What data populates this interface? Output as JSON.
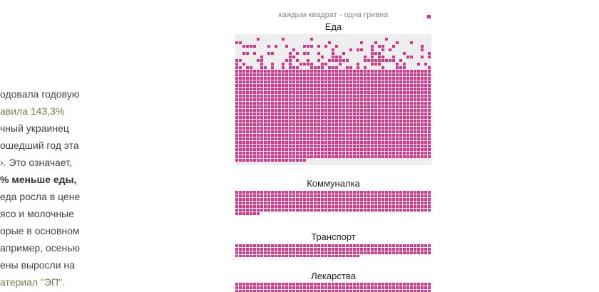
{
  "article": {
    "lines": [
      "одовала годовую",
      "авила 143,3%",
      "чный украинец",
      "ошедший год эта",
      "›. Это означает,",
      "% меньше еды,",
      "еда росла в цене",
      "ясо и молочные",
      "орые в основном",
      "априме­р, осенью",
      "ены выросли на",
      "атериал \"ЭП\"."
    ]
  },
  "viz": {
    "note": "каждыи квадрат - одна гривна",
    "accent_color": "#d6338a",
    "sections": [
      {
        "title": "Еда"
      },
      {
        "title": "Коммуналка"
      },
      {
        "title": "Транспорт"
      },
      {
        "title": "Лекарства"
      }
    ]
  }
}
